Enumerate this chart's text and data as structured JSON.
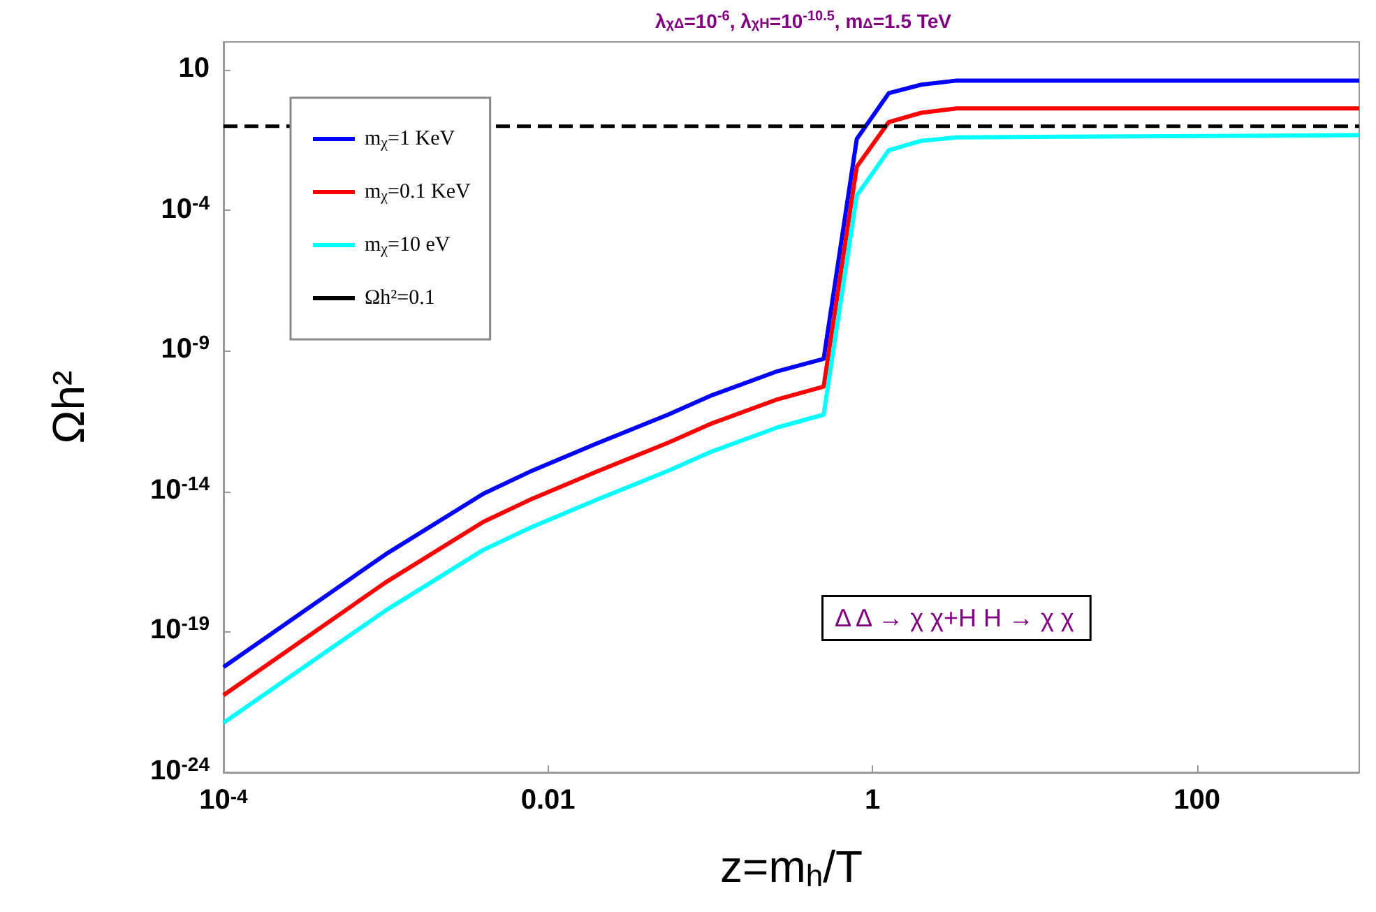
{
  "chart_data": {
    "type": "line",
    "title": "λ$_{χΔ}$=10$^{-6}$, λ$_{χH}$=10$^{-10.5}$, m$_{Δ}$=1.5 TeV",
    "xlabel": "z=m$_{h}$/T",
    "ylabel": "Ωh²",
    "x": [
      0.0001,
      0.001,
      0.004,
      0.008,
      0.02,
      0.055,
      0.1,
      0.26,
      0.5,
      0.8,
      1.26,
      2.0,
      3.3,
      1000
    ],
    "series": [
      {
        "name": "m$_{χ}$=1 KeV",
        "color": "#0000ff",
        "values": [
          5.6e-21,
          5.8e-17,
          8.3e-15,
          5.5e-14,
          5.1e-13,
          5.4e-12,
          2.5e-11,
          1.9e-10,
          5.2e-10,
          0.035,
          1.5,
          3,
          4.2,
          4.2
        ]
      },
      {
        "name": "m$_{χ}$=0.1 KeV",
        "color": "#ff0000",
        "values": [
          5.6e-22,
          5.8e-18,
          8.3e-16,
          5.5e-15,
          5.1e-14,
          5.4e-13,
          2.5e-12,
          1.9e-11,
          5.4e-11,
          0.0036,
          0.14,
          0.3,
          0.43,
          0.43
        ]
      },
      {
        "name": "m$_{χ}$=10 eV",
        "color": "#00ffff",
        "values": [
          5.8e-23,
          5.8e-19,
          8.3e-17,
          5.5e-16,
          5.1e-15,
          5.4e-14,
          2.5e-13,
          1.9e-12,
          5.4e-12,
          0.00034,
          0.014,
          0.03,
          0.04,
          0.048
        ]
      }
    ],
    "ref_lines": [
      {
        "axis": "y",
        "value": 0.1,
        "label": "Ωh²=0.1",
        "color": "#000000",
        "line_style": "dashed"
      }
    ],
    "annotations": [
      "Δ Δ → χ χ+H H → χ χ"
    ],
    "log": "xy",
    "xlim": [
      0.0001,
      1000
    ],
    "xticks": [
      {
        "value": 0.0001,
        "label": "10$^{-4}$"
      },
      0.01,
      1,
      100
    ],
    "ylim": [
      1e-24,
      100
    ],
    "yticks": [
      {
        "value": 1e-24,
        "label": "10$^{-24}$"
      },
      {
        "value": 1e-19,
        "label": "10$^{-19}$"
      },
      {
        "value": 1e-14,
        "label": "10$^{-14}$"
      },
      {
        "value": 1e-09,
        "label": "10$^{-9}$"
      },
      {
        "value": 0.0001,
        "label": "10$^{-4}$"
      },
      10
    ],
    "legend": "top left",
    "grid": false,
    "marker": "none",
    "line_style": "solid"
  }
}
